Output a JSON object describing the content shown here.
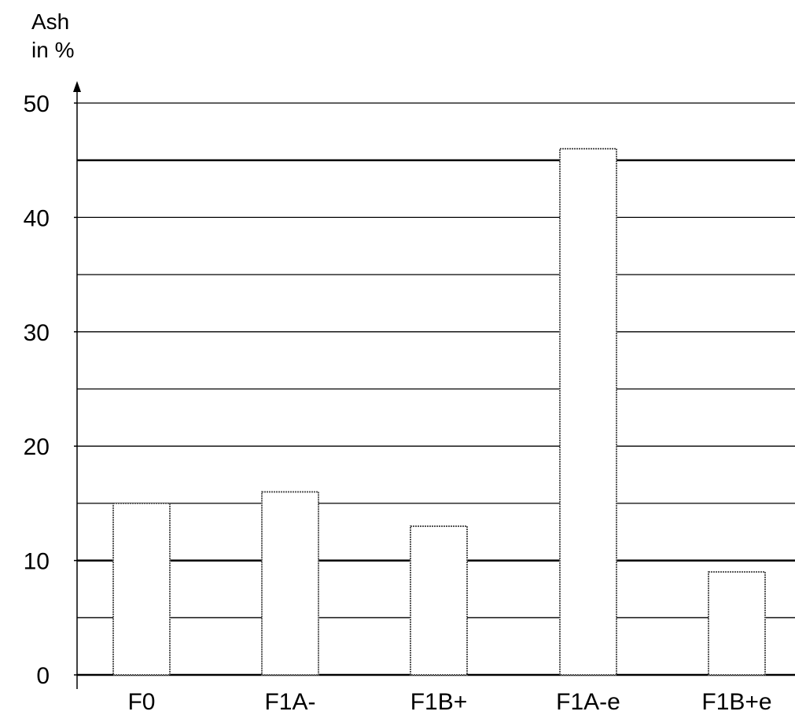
{
  "chart_data": {
    "type": "bar",
    "ylabel_line1": "Ash",
    "ylabel_line2": "in %",
    "categories": [
      "F0",
      "F1A-",
      "F1B+",
      "F1A-e",
      "F1B+e"
    ],
    "values": [
      15,
      16,
      13,
      46,
      9
    ],
    "ylim": [
      0,
      50
    ],
    "yticks": [
      0,
      10,
      20,
      30,
      40,
      50
    ],
    "grid": true,
    "grid_step": 5,
    "colors": {
      "bar_fill": "#ffffff",
      "bar_stroke": "#555555",
      "gridline": "#000000",
      "axis": "#000000",
      "text": "#000000"
    }
  }
}
